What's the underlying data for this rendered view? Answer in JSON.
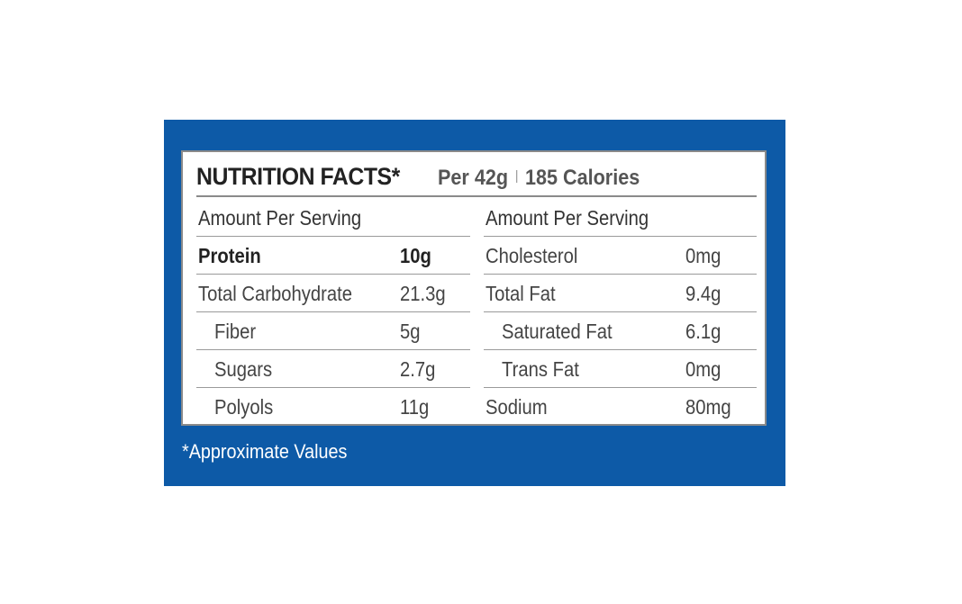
{
  "title": {
    "main": "NUTRITION FACTS*",
    "per": "Per 42g",
    "calories": "185 Calories"
  },
  "left": {
    "header": "Amount Per Serving",
    "rows": [
      {
        "name": "Protein",
        "value": "10g"
      },
      {
        "name": "Total Carbohydrate",
        "value": "21.3g"
      },
      {
        "name": "Fiber",
        "value": "5g"
      },
      {
        "name": "Sugars",
        "value": "2.7g"
      },
      {
        "name": "Polyols",
        "value": "11g"
      }
    ]
  },
  "right": {
    "header": "Amount Per Serving",
    "rows": [
      {
        "name": "Cholesterol",
        "value": "0mg"
      },
      {
        "name": "Total Fat",
        "value": "9.4g"
      },
      {
        "name": "Saturated Fat",
        "value": "6.1g"
      },
      {
        "name": "Trans Fat",
        "value": "0mg"
      },
      {
        "name": "Sodium",
        "value": "80mg"
      }
    ]
  },
  "footnote": "*Approximate Values",
  "colors": {
    "panel_blue": "#0d5aa7",
    "border_gray": "#8a8a8a"
  }
}
